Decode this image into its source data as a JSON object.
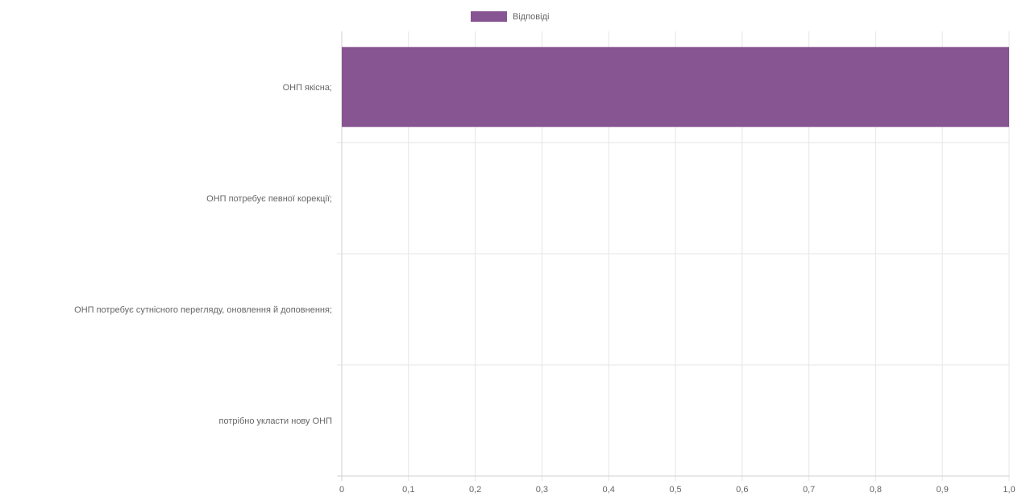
{
  "chart_data": {
    "type": "bar",
    "orientation": "horizontal",
    "categories": [
      "ОНП якісна;",
      "ОНП потребує певної корекції;",
      "ОНП потребує сутнісного перегляду, оновлення й доповнення;",
      "потрібно укласти нову ОНП"
    ],
    "series": [
      {
        "name": "Відповіді",
        "values": [
          1,
          0,
          0,
          0
        ],
        "color": "#875591"
      }
    ],
    "xlim": [
      0,
      1
    ],
    "x_ticks": [
      "0",
      "0,1",
      "0,2",
      "0,3",
      "0,4",
      "0,5",
      "0,6",
      "0,7",
      "0,8",
      "0,9",
      "1,0"
    ],
    "grid": true,
    "legend_position": "top"
  }
}
